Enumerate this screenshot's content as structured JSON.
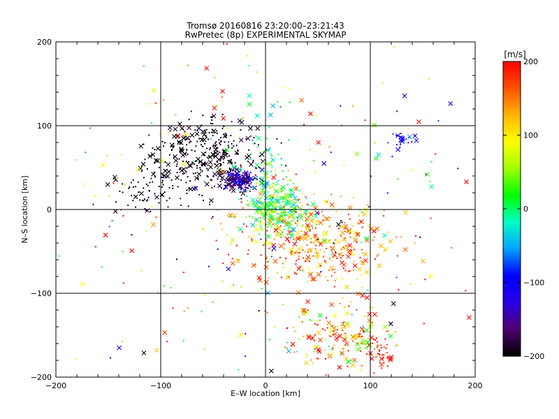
{
  "title_line1": "Tromsø 20160816 23:20:00–23:21:43",
  "title_line2": "RwPretec (8p) EXPERIMENTAL SKYMAP",
  "colorbar": {
    "unit": "[m/s]",
    "ticks": [
      {
        "value": 200,
        "label": "200"
      },
      {
        "value": 100,
        "label": "100"
      },
      {
        "value": 0,
        "label": "0"
      },
      {
        "value": -100,
        "label": "−100"
      },
      {
        "value": -200,
        "label": "−200"
      }
    ],
    "range": [
      -200,
      200
    ],
    "colors_low_to_high": [
      "#000000",
      "#50006e",
      "#2800e6",
      "#0000ff",
      "#00a0ff",
      "#00ffc8",
      "#00ff00",
      "#a0ff00",
      "#ffff00",
      "#ffb400",
      "#ff5000",
      "#ff0000"
    ]
  },
  "chart_data": {
    "type": "scatter",
    "title": "Tromsø 20160816 23:20:00–23:21:43",
    "subtitle": "RwPretec (8p) EXPERIMENTAL SKYMAP",
    "xlabel": "E–W location [km]",
    "ylabel": "N–S location [km]",
    "xlim": [
      -200,
      200
    ],
    "ylim": [
      -200,
      200
    ],
    "xticks": [
      {
        "value": -200,
        "label": "−200"
      },
      {
        "value": -100,
        "label": "−100"
      },
      {
        "value": 0,
        "label": "0"
      },
      {
        "value": 100,
        "label": "100"
      },
      {
        "value": 200,
        "label": "200"
      }
    ],
    "yticks": [
      {
        "value": -200,
        "label": "−200"
      },
      {
        "value": -100,
        "label": "−100"
      },
      {
        "value": 0,
        "label": "0"
      },
      {
        "value": 100,
        "label": "100"
      },
      {
        "value": 200,
        "label": "200"
      }
    ],
    "grid": true,
    "markers": [
      "dot",
      "x"
    ],
    "color_encodes": "velocity [m/s]",
    "point_clusters": [
      {
        "center": [
          -50,
          65
        ],
        "spread": [
          22,
          22
        ],
        "velocity_mean": -195,
        "velocity_sd": 8,
        "count": 260
      },
      {
        "center": [
          -25,
          35
        ],
        "spread": [
          8,
          6
        ],
        "velocity_mean": -150,
        "velocity_sd": 25,
        "count": 180
      },
      {
        "center": [
          -85,
          50
        ],
        "spread": [
          22,
          22
        ],
        "velocity_mean": -195,
        "velocity_sd": 8,
        "count": 100
      },
      {
        "center": [
          -120,
          25
        ],
        "spread": [
          15,
          12
        ],
        "velocity_mean": -195,
        "velocity_sd": 8,
        "count": 40
      },
      {
        "center": [
          10,
          0
        ],
        "spread": [
          15,
          15
        ],
        "velocity_mean": 20,
        "velocity_sd": 40,
        "count": 300
      },
      {
        "center": [
          50,
          -40
        ],
        "spread": [
          35,
          25
        ],
        "velocity_mean": 150,
        "velocity_sd": 40,
        "count": 360
      },
      {
        "center": [
          70,
          -150
        ],
        "spread": [
          25,
          20
        ],
        "velocity_mean": 130,
        "velocity_sd": 70,
        "count": 180
      },
      {
        "center": [
          110,
          -170
        ],
        "spread": [
          6,
          8
        ],
        "velocity_mean": 190,
        "velocity_sd": 10,
        "count": 40
      },
      {
        "center": [
          95,
          -160
        ],
        "spread": [
          4,
          4
        ],
        "velocity_mean": 40,
        "velocity_sd": 10,
        "count": 15
      },
      {
        "center": [
          130,
          80
        ],
        "spread": [
          8,
          6
        ],
        "velocity_mean": -110,
        "velocity_sd": 30,
        "count": 25
      },
      {
        "center": [
          0,
          50
        ],
        "spread": [
          10,
          25
        ],
        "velocity_mean": 0,
        "velocity_sd": 40,
        "count": 60
      },
      {
        "center": [
          0,
          0
        ],
        "spread": [
          110,
          110
        ],
        "velocity_mean": 50,
        "velocity_sd": 150,
        "count": 300
      }
    ]
  }
}
